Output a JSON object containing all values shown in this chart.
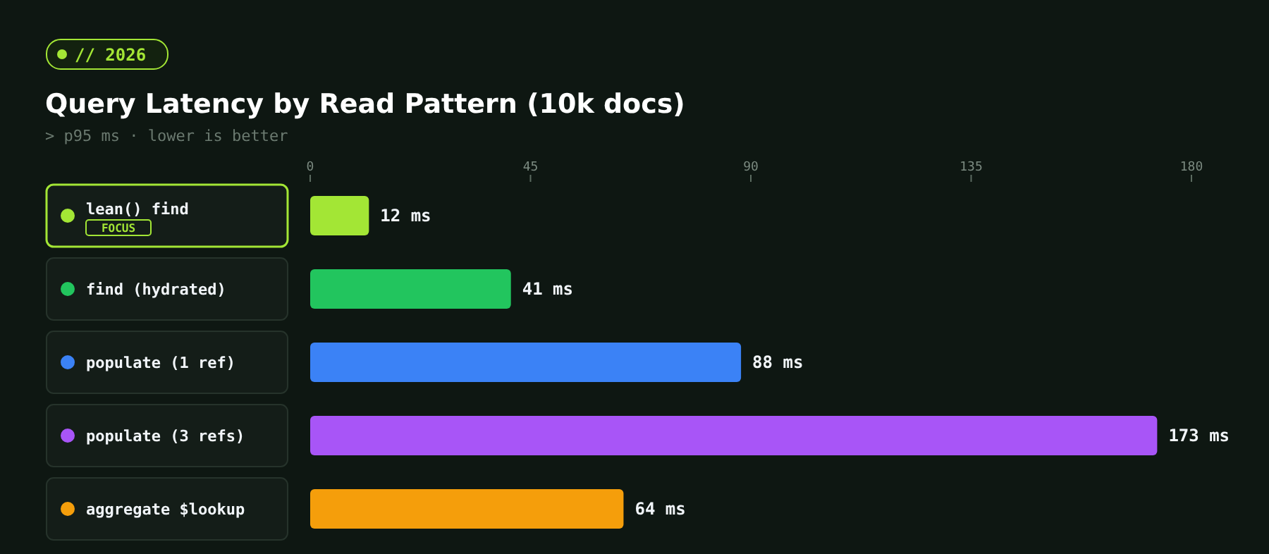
{
  "chart_data": {
    "type": "bar",
    "orientation": "horizontal",
    "title": "Query Latency by Read Pattern (10k docs)",
    "subtitle": "> p95 ms · lower is better",
    "categories": [
      "lean() find",
      "find (hydrated)",
      "populate (1 ref)",
      "populate (3 refs)",
      "aggregate $lookup"
    ],
    "values": [
      12,
      41,
      88,
      173,
      64
    ],
    "colors": [
      "#a3e635",
      "#22c55e",
      "#3b82f6",
      "#a855f7",
      "#f59e0b"
    ],
    "value_labels": [
      "12 ms",
      "41 ms",
      "88 ms",
      "173 ms",
      "64 ms"
    ],
    "xlim": [
      0,
      180
    ],
    "xticks": [
      0,
      45,
      90,
      135,
      180
    ],
    "grid": false,
    "annotations": [
      "// 2026",
      "FOCUS"
    ]
  }
}
